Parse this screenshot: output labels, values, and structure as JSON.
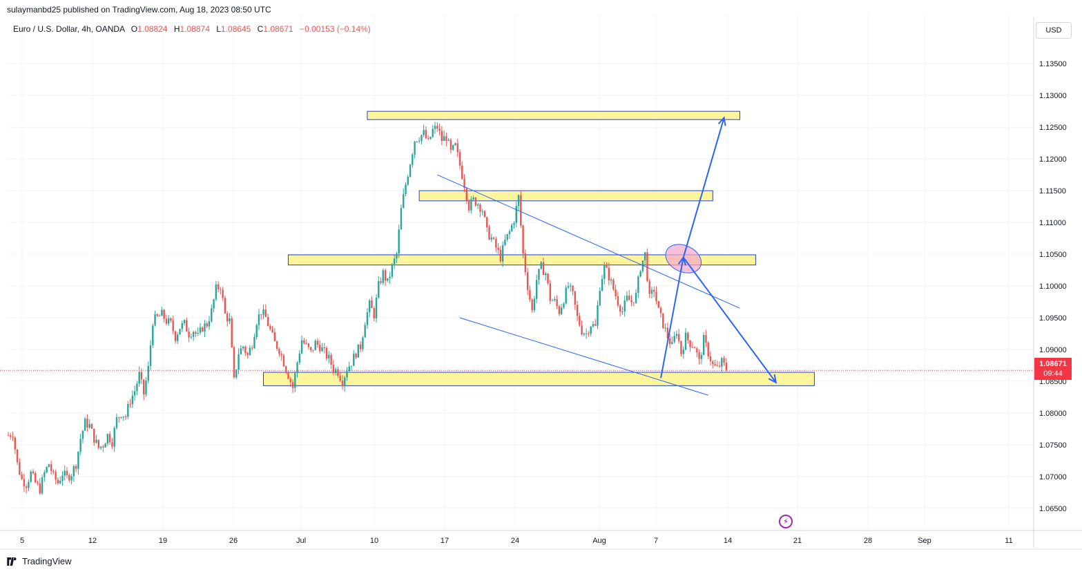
{
  "header": {
    "published": "sulaymanbd25 published on TradingView.com, Aug 18, 2023 08:50 UTC"
  },
  "legend": {
    "symbol": "Euro / U.S. Dollar, 4h, OANDA",
    "open_label": "O",
    "open": "1.08824",
    "high_label": "H",
    "high": "1.08874",
    "low_label": "L",
    "low": "1.08645",
    "close_label": "C",
    "close": "1.08671",
    "change": "−0.00153 (−0.14%)"
  },
  "currency_button": "USD",
  "price_tag": {
    "price": "1.08671",
    "countdown": "09:44"
  },
  "footer": {
    "brand": "TradingView"
  },
  "icons": {
    "brand_logo": "tradingview-logo-icon",
    "alert": "lightning-icon"
  },
  "colors": {
    "up": "#26a69a",
    "down": "#ef5350",
    "zone_fill": "#fff59d",
    "zone_border": "#1e3fd6",
    "drawing": "#2962ff",
    "ellipse": "#f3a6c8"
  },
  "chart_data": {
    "type": "candlestick",
    "ylim": [
      1.0615,
      1.1385
    ],
    "y_ticks": [
      "1.13500",
      "1.13000",
      "1.12500",
      "1.12000",
      "1.11500",
      "1.11000",
      "1.10500",
      "1.10000",
      "1.09500",
      "1.09000",
      "1.08500",
      "1.08000",
      "1.07500",
      "1.07000",
      "1.06500"
    ],
    "x_ticks": [
      "5",
      "12",
      "19",
      "26",
      "Jul",
      "10",
      "17",
      "24",
      "Aug",
      "7",
      "14",
      "21",
      "28",
      "Sep",
      "11"
    ],
    "path": [
      [
        0,
        1.0765
      ],
      [
        2,
        1.0768
      ],
      [
        4,
        1.072
      ],
      [
        6,
        1.0695
      ],
      [
        8,
        1.0688
      ],
      [
        10,
        1.0705
      ],
      [
        12,
        1.069
      ],
      [
        14,
        1.068
      ],
      [
        16,
        1.0705
      ],
      [
        18,
        1.072
      ],
      [
        20,
        1.07
      ],
      [
        22,
        1.069
      ],
      [
        24,
        1.0705
      ],
      [
        26,
        1.0698
      ],
      [
        28,
        1.0705
      ],
      [
        30,
        1.072
      ],
      [
        32,
        1.076
      ],
      [
        34,
        1.0785
      ],
      [
        36,
        1.078
      ],
      [
        38,
        1.076
      ],
      [
        40,
        1.0745
      ],
      [
        42,
        1.075
      ],
      [
        44,
        1.0765
      ],
      [
        46,
        1.0755
      ],
      [
        48,
        1.079
      ],
      [
        50,
        1.08
      ],
      [
        52,
        1.0795
      ],
      [
        54,
        1.082
      ],
      [
        56,
        1.0835
      ],
      [
        58,
        1.086
      ],
      [
        60,
        1.083
      ],
      [
        62,
        1.087
      ],
      [
        64,
        1.0945
      ],
      [
        66,
        1.095
      ],
      [
        68,
        1.0955
      ],
      [
        70,
        1.0945
      ],
      [
        72,
        1.094
      ],
      [
        74,
        1.092
      ],
      [
        76,
        1.0935
      ],
      [
        78,
        1.094
      ],
      [
        80,
        1.0925
      ],
      [
        82,
        1.093
      ],
      [
        84,
        1.092
      ],
      [
        86,
        1.0935
      ],
      [
        88,
        1.094
      ],
      [
        90,
        1.096
      ],
      [
        92,
        1.0995
      ],
      [
        94,
        1.1
      ],
      [
        96,
        1.0955
      ],
      [
        98,
        1.0945
      ],
      [
        100,
        1.085
      ],
      [
        102,
        1.0895
      ],
      [
        104,
        1.0905
      ],
      [
        106,
        1.089
      ],
      [
        108,
        1.091
      ],
      [
        110,
        1.0945
      ],
      [
        112,
        1.096
      ],
      [
        114,
        1.095
      ],
      [
        116,
        1.093
      ],
      [
        118,
        1.091
      ],
      [
        120,
        1.09
      ],
      [
        122,
        1.088
      ],
      [
        124,
        1.086
      ],
      [
        126,
        1.084
      ],
      [
        128,
        1.088
      ],
      [
        130,
        1.0915
      ],
      [
        132,
        1.0905
      ],
      [
        134,
        1.0895
      ],
      [
        136,
        1.091
      ],
      [
        138,
        1.0905
      ],
      [
        140,
        1.0895
      ],
      [
        142,
        1.0885
      ],
      [
        144,
        1.087
      ],
      [
        146,
        1.0865
      ],
      [
        148,
        1.085
      ],
      [
        150,
        1.087
      ],
      [
        152,
        1.088
      ],
      [
        154,
        1.0895
      ],
      [
        156,
        1.0905
      ],
      [
        158,
        1.0945
      ],
      [
        160,
        1.097
      ],
      [
        162,
        1.0955
      ],
      [
        164,
        1.1
      ],
      [
        166,
        1.102
      ],
      [
        168,
        1.1005
      ],
      [
        170,
        1.103
      ],
      [
        172,
        1.105
      ],
      [
        174,
        1.112
      ],
      [
        176,
        1.116
      ],
      [
        178,
        1.1195
      ],
      [
        180,
        1.123
      ],
      [
        182,
        1.1235
      ],
      [
        184,
        1.124
      ],
      [
        186,
        1.1225
      ],
      [
        188,
        1.1245
      ],
      [
        190,
        1.125
      ],
      [
        192,
        1.123
      ],
      [
        194,
        1.1235
      ],
      [
        196,
        1.121
      ],
      [
        198,
        1.122
      ],
      [
        200,
        1.119
      ],
      [
        202,
        1.116
      ],
      [
        204,
        1.1125
      ],
      [
        206,
        1.1135
      ],
      [
        208,
        1.113
      ],
      [
        210,
        1.112
      ],
      [
        212,
        1.1085
      ],
      [
        214,
        1.1075
      ],
      [
        216,
        1.106
      ],
      [
        218,
        1.1045
      ],
      [
        220,
        1.107
      ],
      [
        222,
        1.1085
      ],
      [
        224,
        1.1105
      ],
      [
        226,
        1.114
      ],
      [
        228,
        1.105
      ],
      [
        230,
        1.1
      ],
      [
        232,
        1.096
      ],
      [
        234,
        1.101
      ],
      [
        236,
        1.103
      ],
      [
        238,
        1.102
      ],
      [
        240,
        1.098
      ],
      [
        242,
        1.0975
      ],
      [
        244,
        1.096
      ],
      [
        246,
        1.098
      ],
      [
        248,
        1.1
      ],
      [
        250,
        1.0985
      ],
      [
        252,
        1.095
      ],
      [
        254,
        1.093
      ],
      [
        256,
        1.0925
      ],
      [
        258,
        1.094
      ],
      [
        260,
        1.0935
      ],
      [
        262,
        1.1
      ],
      [
        264,
        1.103
      ],
      [
        266,
        1.1015
      ],
      [
        268,
        1.0995
      ],
      [
        270,
        1.0975
      ],
      [
        272,
        1.096
      ],
      [
        274,
        1.098
      ],
      [
        276,
        1.0975
      ],
      [
        278,
        1.0985
      ],
      [
        280,
        1.103
      ],
      [
        282,
        1.105
      ],
      [
        284,
        1.098
      ],
      [
        286,
        1.0995
      ],
      [
        288,
        1.096
      ],
      [
        290,
        1.094
      ],
      [
        292,
        1.092
      ],
      [
        294,
        1.0905
      ],
      [
        296,
        1.093
      ],
      [
        298,
        1.0895
      ],
      [
        300,
        1.092
      ],
      [
        302,
        1.091
      ],
      [
        304,
        1.0905
      ],
      [
        306,
        1.088
      ],
      [
        308,
        1.0915
      ],
      [
        310,
        1.0895
      ],
      [
        312,
        1.0875
      ],
      [
        314,
        1.087
      ],
      [
        316,
        1.088
      ],
      [
        318,
        1.087
      ]
    ],
    "levels": [
      {
        "start": 159,
        "end": 324,
        "low": 1.1262,
        "high": 1.1275
      },
      {
        "start": 182,
        "end": 312,
        "low": 1.1134,
        "high": 1.115
      },
      {
        "start": 124,
        "end": 331,
        "low": 1.1033,
        "high": 1.1049
      },
      {
        "start": 113,
        "end": 357,
        "low": 1.0843,
        "high": 1.0864
      }
    ],
    "trendlines": [
      {
        "from": [
          190,
          1.1175
        ],
        "to": [
          324,
          1.0965
        ]
      },
      {
        "from": [
          200,
          1.095
        ],
        "to": [
          310,
          1.0828
        ]
      }
    ],
    "projection": [
      [
        289,
        1.0855
      ],
      [
        299,
        1.1045
      ],
      [
        317,
        1.1265
      ]
    ],
    "projection_alt": [
      [
        299,
        1.1045
      ],
      [
        340,
        1.0848
      ]
    ],
    "highlight": {
      "center": [
        299,
        1.1043
      ]
    },
    "last_price": 1.08671
  }
}
